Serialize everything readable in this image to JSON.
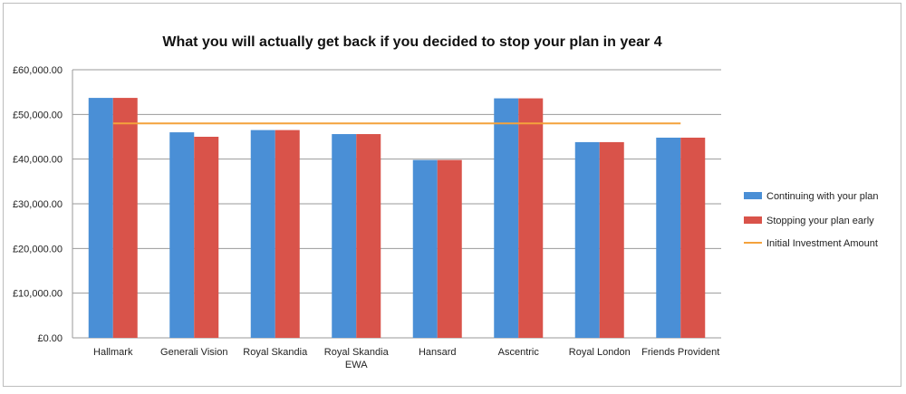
{
  "chart_data": {
    "type": "bar",
    "title": "What you will actually get back if you decided to stop your plan in year 4",
    "categories": [
      "Hallmark",
      "Generali Vision",
      "Royal Skandia",
      "Royal Skandia EWA",
      "Hansard",
      "Ascentric",
      "Royal London",
      "Friends Provident"
    ],
    "category_lines": [
      [
        "Hallmark"
      ],
      [
        "Generali Vision"
      ],
      [
        "Royal Skandia"
      ],
      [
        "Royal Skandia",
        "EWA"
      ],
      [
        "Hansard"
      ],
      [
        "Ascentric"
      ],
      [
        "Royal London"
      ],
      [
        "Friends Provident"
      ]
    ],
    "series": [
      {
        "name": "Continuing with your plan",
        "color": "#4a8fd6",
        "values": [
          53700,
          46000,
          46500,
          45600,
          39800,
          53600,
          43800,
          44800
        ]
      },
      {
        "name": "Stopping your plan early",
        "color": "#d9534a",
        "values": [
          53700,
          45000,
          46500,
          45600,
          39800,
          53600,
          43800,
          44800
        ]
      }
    ],
    "line": {
      "name": "Initial Investment Amount",
      "color": "#f4a23c",
      "value": 48000
    },
    "ylim": [
      0,
      60000
    ],
    "yticks": [
      0,
      10000,
      20000,
      30000,
      40000,
      50000,
      60000
    ],
    "ytick_labels": [
      "£0.00",
      "£10,000.00",
      "£20,000.00",
      "£30,000.00",
      "£40,000.00",
      "£50,000.00",
      "£60,000.00"
    ],
    "xlabel": "",
    "ylabel": "",
    "grid": true,
    "legend_position": "right"
  }
}
